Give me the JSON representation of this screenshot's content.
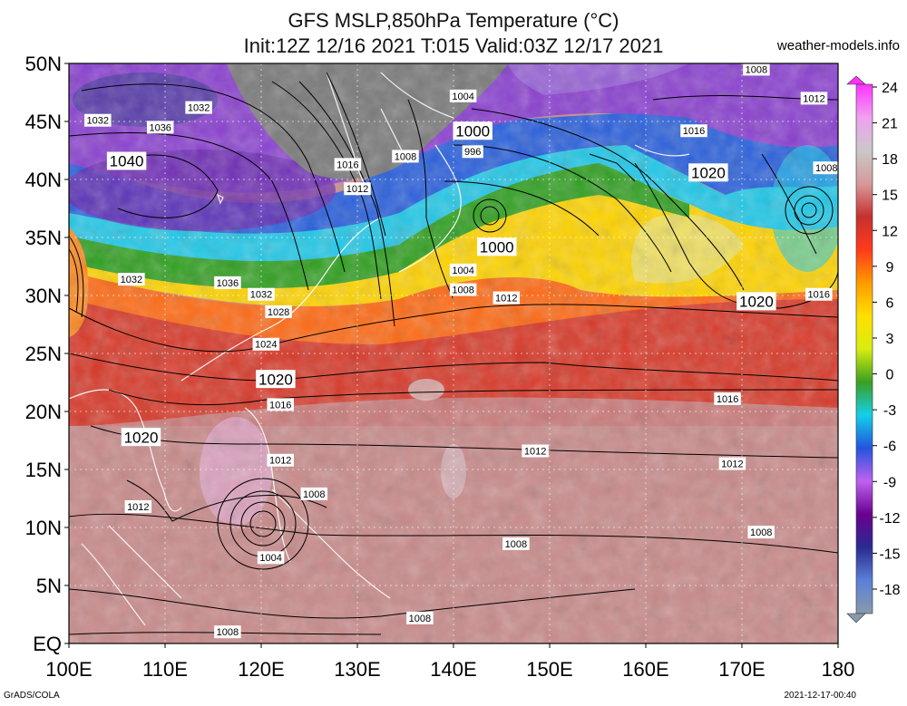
{
  "header": {
    "title_line1": "GFS MSLP,850hPa Temperature (°C)",
    "title_line2": "Init:12Z 12/16 2021 T:015 Valid:03Z 12/17 2021",
    "site": "weather-models.info"
  },
  "footer": {
    "left": "GrADS/COLA",
    "right": "2021-12-17-00:40"
  },
  "axes": {
    "lat_labels": [
      "50N",
      "45N",
      "40N",
      "35N",
      "30N",
      "25N",
      "20N",
      "15N",
      "10N",
      "5N",
      "EQ"
    ],
    "lon_labels": [
      "100E",
      "110E",
      "120E",
      "130E",
      "140E",
      "150E",
      "160E",
      "170E",
      "180"
    ]
  },
  "colorbar": {
    "ticks": [
      "24",
      "21",
      "18",
      "15",
      "12",
      "9",
      "6",
      "3",
      "0",
      "-3",
      "-6",
      "-9",
      "-12",
      "-15",
      "-18"
    ],
    "stops": [
      "#ff33ff",
      "#f0a0f0",
      "#c9c9c9",
      "#d79a9a",
      "#c63030",
      "#ff3a1a",
      "#ff9a00",
      "#ffe000",
      "#d8ec10",
      "#3aa020",
      "#14d0e8",
      "#2255dd",
      "#c060f0",
      "#6a0090",
      "#2a2a90",
      "#5a80d8",
      "#889aaa"
    ]
  },
  "isobars": [
    {
      "label": "1008",
      "lon": 171.5,
      "lat": 49.5
    },
    {
      "label": "1004",
      "lon": 141,
      "lat": 47.2
    },
    {
      "label": "1012",
      "lon": 177.5,
      "lat": 47
    },
    {
      "label": "1032",
      "lon": 103,
      "lat": 45.1
    },
    {
      "label": "1032",
      "lon": 113.5,
      "lat": 46.2
    },
    {
      "label": "1036",
      "lon": 109.5,
      "lat": 44.5
    },
    {
      "label": "1000",
      "lon": 142,
      "lat": 44.2
    },
    {
      "label": "1016",
      "lon": 165,
      "lat": 44.2
    },
    {
      "label": "996",
      "lon": 142,
      "lat": 42.4
    },
    {
      "label": "1008",
      "lon": 135,
      "lat": 42
    },
    {
      "label": "1040",
      "lon": 106,
      "lat": 41.6
    },
    {
      "label": "1016",
      "lon": 129,
      "lat": 41.3
    },
    {
      "label": "1020",
      "lon": 166.5,
      "lat": 40.6
    },
    {
      "label": "1008",
      "lon": 178.8,
      "lat": 41
    },
    {
      "label": "1012",
      "lon": 130,
      "lat": 39.2
    },
    {
      "label": "1000",
      "lon": 144.5,
      "lat": 34.2
    },
    {
      "label": "1004",
      "lon": 141,
      "lat": 32.2
    },
    {
      "label": "1032",
      "lon": 106.5,
      "lat": 31.4
    },
    {
      "label": "1036",
      "lon": 116.5,
      "lat": 31.1
    },
    {
      "label": "1008",
      "lon": 141,
      "lat": 30.5
    },
    {
      "label": "1032",
      "lon": 120,
      "lat": 30.1
    },
    {
      "label": "1012",
      "lon": 145.5,
      "lat": 29.8
    },
    {
      "label": "1020",
      "lon": 171.5,
      "lat": 29.5
    },
    {
      "label": "1016",
      "lon": 178,
      "lat": 30.1
    },
    {
      "label": "1028",
      "lon": 121.8,
      "lat": 28.6
    },
    {
      "label": "1024",
      "lon": 120.5,
      "lat": 25.8
    },
    {
      "label": "1020",
      "lon": 121.5,
      "lat": 22.8
    },
    {
      "label": "1016",
      "lon": 122,
      "lat": 20.6
    },
    {
      "label": "1016",
      "lon": 168.5,
      "lat": 21.1
    },
    {
      "label": "1020",
      "lon": 107.5,
      "lat": 17.8
    },
    {
      "label": "1012",
      "lon": 148.5,
      "lat": 16.6
    },
    {
      "label": "1012",
      "lon": 122,
      "lat": 15.8
    },
    {
      "label": "1012",
      "lon": 169,
      "lat": 15.5
    },
    {
      "label": "1008",
      "lon": 125.5,
      "lat": 12.9
    },
    {
      "label": "1012",
      "lon": 107.2,
      "lat": 11.8
    },
    {
      "label": "1008",
      "lon": 172,
      "lat": 9.6
    },
    {
      "label": "1008",
      "lon": 146.5,
      "lat": 8.6
    },
    {
      "label": "1004",
      "lon": 121,
      "lat": 7.4
    },
    {
      "label": "1008",
      "lon": 136.5,
      "lat": 2.2
    },
    {
      "label": "1008",
      "lon": 116.5,
      "lat": 1.0
    }
  ]
}
